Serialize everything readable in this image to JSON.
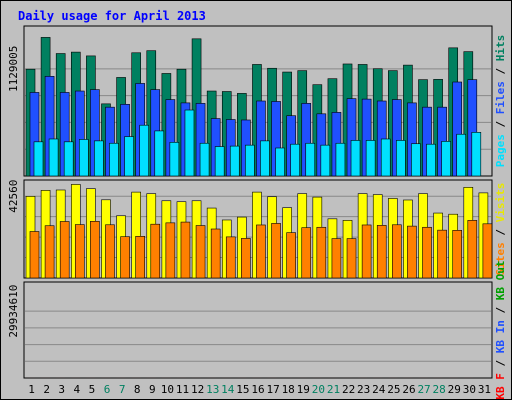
{
  "chart_data": {
    "type": "bar",
    "title": "Daily usage for April 2013",
    "categories": [
      "1",
      "2",
      "3",
      "4",
      "5",
      "6",
      "7",
      "8",
      "9",
      "10",
      "11",
      "12",
      "13",
      "14",
      "15",
      "16",
      "17",
      "18",
      "19",
      "20",
      "21",
      "22",
      "23",
      "24",
      "25",
      "26",
      "27",
      "28",
      "29",
      "30",
      "31"
    ],
    "weekend_days": [
      "6",
      "7",
      "13",
      "14",
      "20",
      "21",
      "27",
      "28"
    ],
    "panels": [
      {
        "id": "top",
        "tick_label": "1129005",
        "tick_value": 1129005,
        "ylim": [
          0,
          1580000
        ],
        "legend": [
          {
            "text": "Pages",
            "color": "#00e0ff"
          },
          {
            "text": " / ",
            "color": "#000000"
          },
          {
            "text": "Files",
            "color": "#2050ff"
          },
          {
            "text": " / ",
            "color": "#000000"
          },
          {
            "text": "Hits",
            "color": "#008060"
          }
        ],
        "series": [
          {
            "name": "Hits",
            "color": "#008060",
            "values": [
              1125000,
              1460000,
              1290000,
              1305000,
              1265000,
              760000,
              1038000,
              1298000,
              1320000,
              1080000,
              1125000,
              1445000,
              895000,
              890000,
              870000,
              1175000,
              1135000,
              1095000,
              1110000,
              962000,
              1025000,
              1180000,
              1175000,
              1130000,
              1110000,
              1168000,
              1015000,
              1018000,
              1350000,
              1310000,
              0
            ]
          },
          {
            "name": "Files",
            "color": "#2050ff",
            "values": [
              880000,
              1050000,
              880000,
              895000,
              910000,
              725000,
              755000,
              975000,
              910000,
              805000,
              770000,
              765000,
              605000,
              595000,
              590000,
              790000,
              785000,
              635000,
              765000,
              655000,
              670000,
              815000,
              810000,
              790000,
              805000,
              770000,
              725000,
              725000,
              990000,
              1015000,
              0
            ]
          },
          {
            "name": "Pages",
            "color": "#00e0ff",
            "values": [
              360000,
              390000,
              360000,
              385000,
              370000,
              345000,
              415000,
              535000,
              475000,
              355000,
              695000,
              345000,
              310000,
              315000,
              325000,
              370000,
              295000,
              335000,
              345000,
              325000,
              345000,
              375000,
              375000,
              390000,
              375000,
              340000,
              335000,
              365000,
              440000,
              460000,
              0
            ]
          }
        ]
      },
      {
        "id": "middle",
        "tick_label": "42560",
        "tick_value": 42560,
        "ylim": [
          0,
          51000
        ],
        "legend": [
          {
            "text": "Sites",
            "color": "#ff8000"
          },
          {
            "text": " / ",
            "color": "#000000"
          },
          {
            "text": "Visits",
            "color": "#e8e800"
          }
        ],
        "series": [
          {
            "name": "Visits",
            "color": "#ffff00",
            "values": [
              42500,
              45600,
              45800,
              48700,
              46500,
              40700,
              32400,
              44700,
              43900,
              40200,
              39700,
              40200,
              36400,
              30200,
              31700,
              44700,
              42300,
              36600,
              43900,
              42100,
              30800,
              30000,
              43900,
              43400,
              41400,
              40600,
              43900,
              33800,
              33200,
              47200,
              44300
            ]
          },
          {
            "name": "Sites",
            "color": "#ff8000",
            "values": [
              24200,
              27200,
              29400,
              27800,
              29500,
              27700,
              21500,
              21700,
              28000,
              28700,
              29100,
              27300,
              25500,
              21400,
              20600,
              27600,
              28400,
              23600,
              26200,
              26400,
              20500,
              20500,
              27600,
              27400,
              27700,
              27000,
              26400,
              24900,
              24800,
              30000,
              28200
            ]
          }
        ]
      },
      {
        "id": "bottom",
        "tick_label": "29934610",
        "tick_value": 29934610,
        "ylim": [
          0,
          43000000
        ],
        "legend": [
          {
            "text": "KB F",
            "color": "#ff0000"
          },
          {
            "text": " / ",
            "color": "#000000"
          },
          {
            "text": "KB In",
            "color": "#2050ff"
          },
          {
            "text": " / ",
            "color": "#000000"
          },
          {
            "text": "KB Out",
            "color": "#00a000"
          }
        ],
        "series": [
          {
            "name": "KB F",
            "color": "#ff0000",
            "values": [
              19200,
              23600,
              22800,
              22200,
              23600,
              24400,
              24000,
              27000,
              26400,
              24200,
              21500,
              17500,
              17800,
              19400,
              21100,
              21800,
              21000,
              16900,
              20100,
              20100,
              13800,
              15700,
              22000,
              24600,
              25600,
              24400,
              25900,
              26200,
              33600,
              40300,
              0
            ]
          }
        ]
      }
    ]
  }
}
